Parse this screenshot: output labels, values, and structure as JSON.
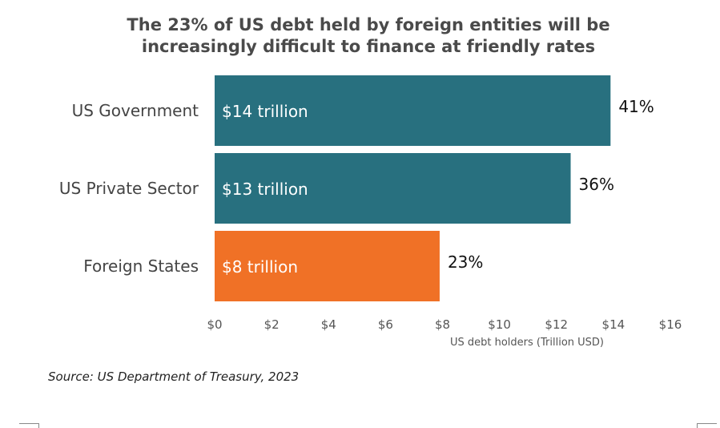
{
  "chart_data": {
    "type": "bar",
    "orientation": "horizontal",
    "title": "The 23% of US debt held by foreign entities will be increasingly difficult to finance at friendly rates",
    "title_lines": [
      "The 23% of US debt held by foreign entities will be",
      "increasingly difficult to finance at friendly rates"
    ],
    "categories": [
      "US Government",
      "US Private Sector",
      "Foreign States"
    ],
    "values": [
      13.9,
      12.5,
      7.9
    ],
    "bar_labels": [
      "$14 trillion",
      "$13 trillion",
      "$8 trillion"
    ],
    "share_labels": [
      "41%",
      "36%",
      "23%"
    ],
    "colors": [
      "#28707F",
      "#28707F",
      "#F07126"
    ],
    "xlabel": "US debt holders (Trillion USD)",
    "xlim": [
      0,
      16
    ],
    "xticks": [
      0,
      2,
      4,
      6,
      8,
      10,
      12,
      14,
      16
    ],
    "xtick_labels": [
      "$0",
      "$2",
      "$4",
      "$6",
      "$8",
      "$10",
      "$12",
      "$14",
      "$16"
    ],
    "grid": false,
    "legend": "none"
  },
  "source": "Source: US Department of Treasury, 2023"
}
